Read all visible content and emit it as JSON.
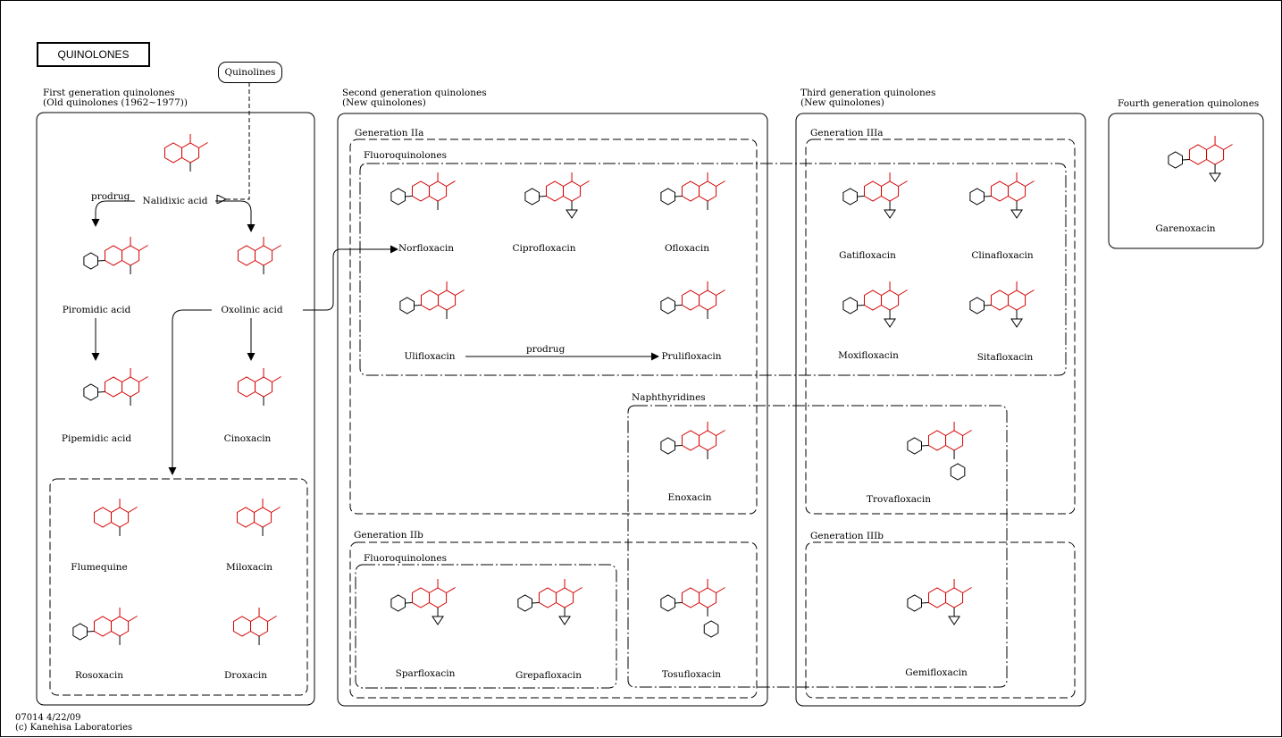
{
  "header": {
    "title": "QUINOLONES",
    "start_node": "Quinolines"
  },
  "generations": {
    "first": {
      "line1": "First generation quinolones",
      "line2": "(Old quinolones (1962~1977))"
    },
    "second": {
      "line1": "Second generation quinolones",
      "line2": "(New quinolones)"
    },
    "third": {
      "line1": "Third generation quinolones",
      "line2": "(New quinolones)"
    },
    "fourth": {
      "line1": "Fourth generation quinolones"
    }
  },
  "groups": {
    "gen2a": "Generation IIa",
    "gen2b": "Generation IIb",
    "gen3a": "Generation IIIa",
    "gen3b": "Generation IIIb",
    "fluoro_2a": "Fluoroquinolones",
    "fluoro_2b": "Fluoroquinolones",
    "naphthyridines": "Naphthyridines"
  },
  "relations": {
    "prodrug_1": "prodrug",
    "prodrug_2": "prodrug"
  },
  "compounds": {
    "nalidixic": "Nalidixic acid",
    "piromidic": "Piromidic acid",
    "oxolinic": "Oxolinic acid",
    "pipemidic": "Pipemidic acid",
    "cinoxacin": "Cinoxacin",
    "flumequine": "Flumequine",
    "miloxacin": "Miloxacin",
    "rosoxacin": "Rosoxacin",
    "droxacin": "Droxacin",
    "norfloxacin": "Norfloxacin",
    "ciprofloxacin": "Ciprofloxacin",
    "ofloxacin": "Ofloxacin",
    "ulifloxacin": "Ulifloxacin",
    "prulifloxacin": "Prulifloxacin",
    "enoxacin": "Enoxacin",
    "sparfloxacin": "Sparfloxacin",
    "grepafloxacin": "Grepafloxacin",
    "tosufloxacin": "Tosufloxacin",
    "gatifloxacin": "Gatifloxacin",
    "clinafloxacin": "Clinafloxacin",
    "moxifloxacin": "Moxifloxacin",
    "sitafloxacin": "Sitafloxacin",
    "trovafloxacin": "Trovafloxacin",
    "gemifloxacin": "Gemifloxacin",
    "garenoxacin": "Garenoxacin"
  },
  "footer": {
    "map_id": "07014 4/22/09",
    "copyright": "(c) Kanehisa Laboratories"
  },
  "colors": {
    "core": "#d40000",
    "line": "#000000",
    "background": "#ffffff"
  }
}
